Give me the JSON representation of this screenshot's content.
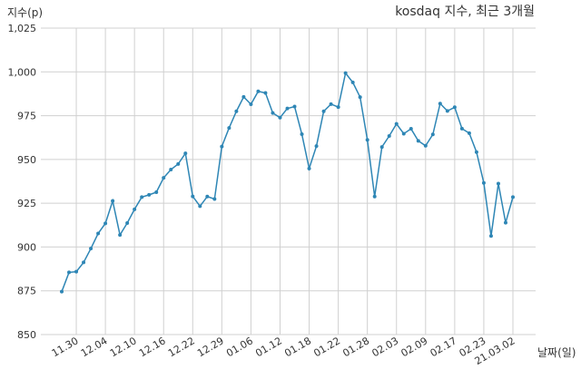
{
  "chart_data": {
    "type": "line",
    "title": "kosdaq 지수, 최근 3개월",
    "xlabel": "날짜(일)",
    "ylabel": "지수(p)",
    "ylim": [
      850,
      1025
    ],
    "yticks": [
      850,
      875,
      900,
      925,
      950,
      975,
      1000,
      1025
    ],
    "ytick_labels": [
      "850",
      "875",
      "900",
      "925",
      "950",
      "975",
      "1,000",
      "1,025"
    ],
    "grid": true,
    "line_color": "#2e86b5",
    "xtick_labels": [
      "11.30",
      "12.04",
      "12.10",
      "12.16",
      "12.22",
      "12.29",
      "01.06",
      "01.12",
      "01.18",
      "01.22",
      "01.28",
      "02.03",
      "02.09",
      "02.17",
      "02.23",
      "21.03.02"
    ],
    "xtick_indices": [
      2,
      6,
      10,
      14,
      18,
      22,
      26,
      30,
      34,
      38,
      42,
      46,
      50,
      54,
      58,
      62
    ],
    "values": [
      874.5,
      885.5,
      885.9,
      891.2,
      899.1,
      907.7,
      913.5,
      926.3,
      906.9,
      913.7,
      921.5,
      928.5,
      929.8,
      931.3,
      939.5,
      944.2,
      947.4,
      953.5,
      928.9,
      923.3,
      928.8,
      927.4,
      957.4,
      968.0,
      977.5,
      985.7,
      981.5,
      988.9,
      988.0,
      976.5,
      973.9,
      979.1,
      980.2,
      964.4,
      944.8,
      957.6,
      977.5,
      981.6,
      979.9,
      999.3,
      994.0,
      985.6,
      961.2,
      928.8,
      957.1,
      963.4,
      970.3,
      964.7,
      967.5,
      960.6,
      957.8,
      964.3,
      981.9,
      977.7,
      979.8,
      967.6,
      965.0,
      954.2,
      936.6,
      906.3,
      936.2,
      913.9,
      928.5
    ]
  }
}
